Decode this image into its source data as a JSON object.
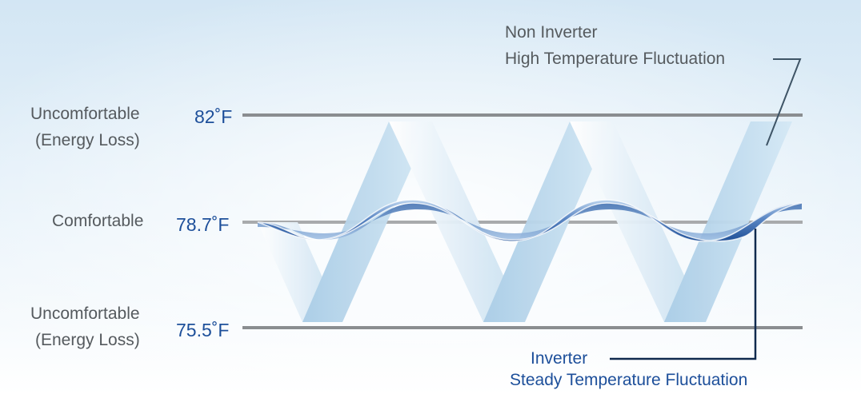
{
  "levels": {
    "high": {
      "label_line1": "Uncomfortable",
      "label_line2": "(Energy Loss)",
      "temp": "82˚F",
      "value": 82
    },
    "mid": {
      "label": "Comfortable",
      "temp": "78.7˚F",
      "value": 78.7
    },
    "low": {
      "label_line1": "Uncomfortable",
      "label_line2": "(Energy Loss)",
      "temp": "75.5˚F",
      "value": 75.5
    }
  },
  "annotations": {
    "non_inverter": {
      "line1": "Non Inverter",
      "line2": "High Temperature Fluctuation"
    },
    "inverter": {
      "line1": "Inverter",
      "line2": "Steady Temperature Fluctuation"
    }
  },
  "colors": {
    "level_line": "#8a8d90",
    "mid_line": "#a8aaac",
    "label_text": "#555a5e",
    "temp_text": "#1d4f9a",
    "inverter_wave": "#2f63ad",
    "non_inverter_band": "#b9d6ea",
    "background_top": "#d3e6f4",
    "background_bottom": "#ffffff"
  }
}
